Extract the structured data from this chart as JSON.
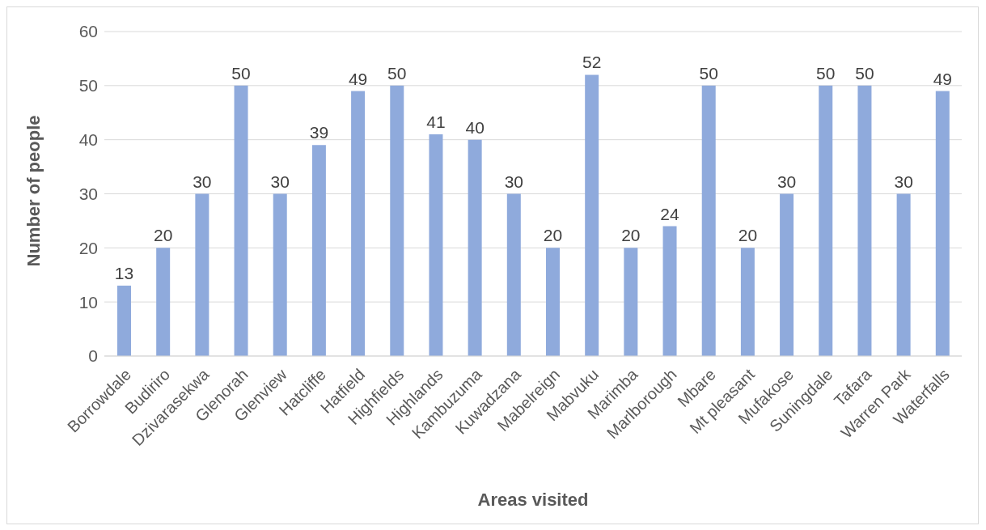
{
  "chart_data": {
    "type": "bar",
    "categories": [
      "Borrowdale",
      "Budiriro",
      "Dzivarasekwa",
      "Glenorah",
      "Glenview",
      "Hatcliffe",
      "Hatfield",
      "Highfields",
      "Highlands",
      "Kambuzuma",
      "Kuwadzana",
      "Mabelreign",
      "Mabvuku",
      "Marimba",
      "Marlborough",
      "Mbare",
      "Mt pleasant",
      "Mufakose",
      "Suningdale",
      "Tafara",
      "Warren Park",
      "Waterfalls"
    ],
    "values": [
      13,
      20,
      30,
      50,
      30,
      39,
      49,
      50,
      41,
      40,
      30,
      20,
      52,
      20,
      24,
      50,
      20,
      30,
      50,
      50,
      30,
      49
    ],
    "color": "#8faadc",
    "xlabel": "Areas visited",
    "ylabel": "Number of people",
    "ylim": [
      0,
      60
    ],
    "yticks": [
      0,
      10,
      20,
      30,
      40,
      50,
      60
    ],
    "grid": "y",
    "data_labels": true
  }
}
